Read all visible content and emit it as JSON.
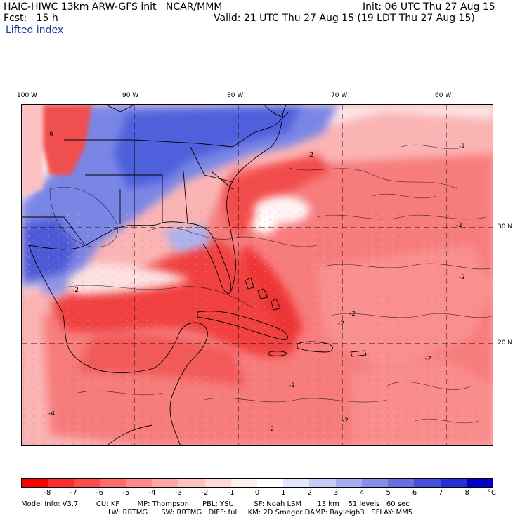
{
  "header": {
    "model_line": "HAIC-HIWC 13km ARW-GFS init   NCAR/MMM",
    "init_line": "Init: 06 UTC Thu 27 Aug 15",
    "fcst_line": "Fcst:   15 h",
    "valid_line": "Valid: 21 UTC Thu 27 Aug 15 (19 LDT Thu 27 Aug 15)",
    "field_name": "Lifted index"
  },
  "map": {
    "longitude_labels": [
      "100 W",
      "90 W",
      "80 W",
      "70 W",
      "60 W"
    ],
    "latitude_labels": [
      "30 N",
      "20 N"
    ],
    "contour_labels": [
      "-6",
      "-2",
      "-2",
      "-2",
      "-2",
      "-4",
      "-2",
      "-2",
      "-2",
      "-2",
      "-2",
      "-2",
      "-2"
    ],
    "colors": {
      "strong_unstable": "#f03030",
      "moderate_unstable": "#f87070",
      "weak_unstable": "#fbb0b0",
      "neutral": "#fde8e8",
      "stable": "#6070e0",
      "very_stable": "#3c4ad8"
    }
  },
  "colorbar": {
    "ticks": [
      "-8",
      "-7",
      "-6",
      "-5",
      "-4",
      "-3",
      "-2",
      "-1",
      "0",
      "1",
      "2",
      "3",
      "4",
      "5",
      "6",
      "7",
      "8"
    ],
    "unit": "°C",
    "colors": [
      "#ff0000",
      "#ff2a2a",
      "#ff4a4a",
      "#ff6a6a",
      "#ff8a8a",
      "#ffa6a6",
      "#ffc0c0",
      "#ffd8d8",
      "#fff0f0",
      "#ffffff",
      "#e4e6fb",
      "#c6caf6",
      "#a6acf0",
      "#868ee9",
      "#6670e2",
      "#4650da",
      "#2630d2",
      "#0000c8"
    ]
  },
  "footer": {
    "line1": "Model Info: V3.7        CU: KF        MP: Thompson      PBL: YSU         SF: Noah LSM       13 km    51 levels   60 sec",
    "line2": "LW: RRTMG      SW: RRTMG   DIFF: full    KM: 2D Smagor DAMP: Rayleigh3   SFLAY: MM5"
  }
}
